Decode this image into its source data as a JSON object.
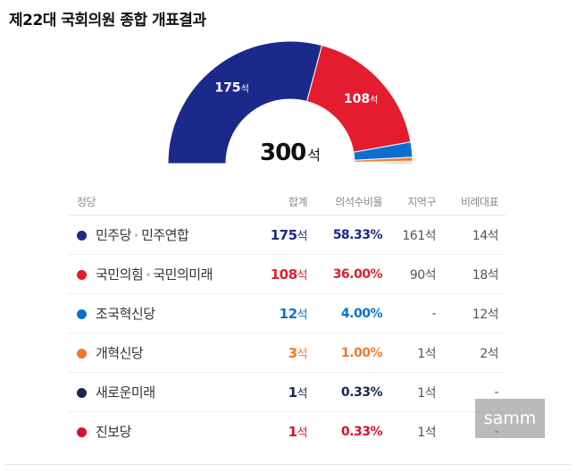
{
  "title": "제22대 국회의원 종합 개표결과",
  "total": {
    "value": "300",
    "unit": "석"
  },
  "columns": {
    "party": "정당",
    "total": "합계",
    "ratio": "의석수비율",
    "district": "지역구",
    "proportional": "비례대표"
  },
  "parties": [
    {
      "name": "민주당",
      "partner": "민주연합",
      "seats": "175",
      "seat_unit": "석",
      "ratio": "58.33%",
      "district": "161석",
      "proportional": "14석",
      "color": "#1b2a8a"
    },
    {
      "name": "국민의힘",
      "partner": "국민의미래",
      "seats": "108",
      "seat_unit": "석",
      "ratio": "36.00%",
      "district": "90석",
      "proportional": "18석",
      "color": "#e31d2f"
    },
    {
      "name": "조국혁신당",
      "partner": "",
      "seats": "12",
      "seat_unit": "석",
      "ratio": "4.00%",
      "district": "-",
      "proportional": "12석",
      "color": "#0a6fcf"
    },
    {
      "name": "개혁신당",
      "partner": "",
      "seats": "3",
      "seat_unit": "석",
      "ratio": "1.00%",
      "district": "1석",
      "proportional": "2석",
      "color": "#f2782b"
    },
    {
      "name": "새로운미래",
      "partner": "",
      "seats": "1",
      "seat_unit": "석",
      "ratio": "0.33%",
      "district": "1석",
      "proportional": "-",
      "color": "#18274f"
    },
    {
      "name": "진보당",
      "partner": "",
      "seats": "1",
      "seat_unit": "석",
      "ratio": "0.33%",
      "district": "1석",
      "proportional": "-",
      "color": "#d7102e"
    }
  ],
  "chart_data": {
    "type": "pie",
    "variant": "half-donut",
    "categories": [
      "민주당·민주연합",
      "국민의힘·국민의미래",
      "조국혁신당",
      "개혁신당",
      "새로운미래",
      "진보당"
    ],
    "values": [
      175,
      108,
      12,
      3,
      1,
      1
    ],
    "colors": [
      "#1b2a8a",
      "#e31d2f",
      "#0a6fcf",
      "#f2782b",
      "#18274f",
      "#d7102e"
    ],
    "data_labels": [
      "175석",
      "108석",
      "",
      "",
      "",
      ""
    ],
    "total": 300
  },
  "watermark": "samm"
}
